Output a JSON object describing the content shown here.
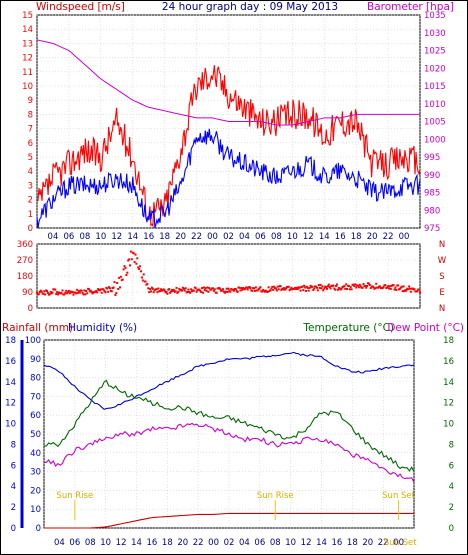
{
  "chart_data": [
    {
      "panel": "wind_barometer",
      "type": "line",
      "title": "24 hour graph day : 09 May 2013",
      "ylabel_left": "Windspeed [m/s]",
      "ylabel_right": "Barometer [hpa]",
      "ylim_left": [
        0,
        15
      ],
      "ylim_right": [
        975,
        1035
      ],
      "yticks_left": [
        "0",
        "1",
        "2",
        "3",
        "4",
        "5",
        "6",
        "7",
        "8",
        "9",
        "10",
        "11",
        "12",
        "13",
        "14",
        "15"
      ],
      "yticks_right": [
        "975",
        "980",
        "985",
        "990",
        "995",
        "1000",
        "1005",
        "1010",
        "1015",
        "1020",
        "1025",
        "1030",
        "1035"
      ],
      "x_hours": [
        0,
        1,
        2,
        3,
        4,
        5,
        6,
        7,
        8,
        9,
        10,
        11,
        12,
        13,
        14,
        15,
        16,
        17,
        18,
        19,
        20,
        21,
        22,
        23,
        24
      ],
      "xtick_labels": [
        "04",
        "06",
        "08",
        "10",
        "12",
        "14",
        "16",
        "18",
        "20",
        "22",
        "00",
        "02",
        "04",
        "06",
        "08",
        "10",
        "12",
        "14",
        "16",
        "18",
        "20",
        "22",
        "00"
      ],
      "series": [
        {
          "name": "Windspeed",
          "color": "#ff0000",
          "values": [
            1.5,
            3.5,
            4.5,
            5.5,
            5.0,
            7.5,
            5.0,
            1.0,
            1.5,
            5.5,
            10.0,
            11.0,
            9.5,
            8.5,
            7.5,
            7.5,
            8.0,
            8.0,
            6.5,
            7.5,
            7.5,
            4.5,
            4.5,
            5.0,
            4.5
          ]
        },
        {
          "name": "Gust/Avg",
          "color": "#0000ff",
          "values": [
            0.5,
            2.0,
            3.0,
            3.0,
            3.0,
            3.5,
            3.0,
            0.5,
            1.0,
            3.0,
            6.5,
            6.5,
            5.0,
            4.5,
            4.0,
            3.5,
            4.0,
            4.5,
            3.5,
            4.0,
            3.5,
            2.5,
            2.5,
            3.0,
            3.0
          ]
        },
        {
          "name": "Barometer",
          "color": "#cc00cc",
          "axis": "right",
          "values": [
            1028,
            1027,
            1025,
            1021,
            1017,
            1014,
            1011,
            1009,
            1008,
            1007,
            1006,
            1006,
            1005,
            1005,
            1005,
            1004,
            1004,
            1005,
            1006,
            1006,
            1007,
            1007,
            1007,
            1007,
            1007
          ]
        }
      ]
    },
    {
      "panel": "wind_direction",
      "type": "scatter",
      "yticks_left": [
        "0",
        "90",
        "180",
        "270",
        "360"
      ],
      "yticks_right": [
        "N",
        "E",
        "S",
        "W",
        "N"
      ],
      "ylim": [
        0,
        360
      ],
      "x_hours": [
        0,
        1,
        2,
        3,
        4,
        5,
        6,
        7,
        8,
        9,
        10,
        11,
        12,
        13,
        14,
        15,
        16,
        17,
        18,
        19,
        20,
        21,
        22,
        23,
        24
      ],
      "series": [
        {
          "name": "Wind direction",
          "color": "#ff0000",
          "values": [
            85,
            90,
            88,
            92,
            95,
            110,
            300,
            105,
            95,
            98,
            100,
            100,
            102,
            105,
            103,
            108,
            110,
            112,
            115,
            118,
            120,
            125,
            115,
            110,
            100
          ]
        }
      ]
    },
    {
      "panel": "rain_humidity_temp",
      "type": "line",
      "labels": {
        "rainfall": "Rainfall (mm)",
        "humidity": "Humidity (%)",
        "temperature": "Temperature (°C)",
        "dewpoint": "Dew Point (°C)"
      },
      "yticks_left": [
        "0",
        "10",
        "20",
        "30",
        "40",
        "50",
        "60",
        "70",
        "80",
        "90",
        "100"
      ],
      "yticks_right": [
        "0",
        "2",
        "4",
        "6",
        "8",
        "10",
        "12",
        "14",
        "16",
        "18"
      ],
      "rain_axis_ticks": [
        "0",
        "2",
        "4",
        "6",
        "8",
        "10",
        "12",
        "14",
        "16",
        "18"
      ],
      "ylim_left": [
        0,
        100
      ],
      "ylim_right": [
        0,
        18
      ],
      "annotations": [
        {
          "text": "Sun Rise",
          "hour": 2
        },
        {
          "text": "Sun Rise",
          "hour": 15
        },
        {
          "text": "Sun Set",
          "hour": 23
        }
      ],
      "bottom_marker": "Sun Set",
      "x_hours": [
        0,
        1,
        2,
        3,
        4,
        5,
        6,
        7,
        8,
        9,
        10,
        11,
        12,
        13,
        14,
        15,
        16,
        17,
        18,
        19,
        20,
        21,
        22,
        23,
        24
      ],
      "series": [
        {
          "name": "Humidity",
          "color": "#0000cc",
          "axis": "left",
          "values": [
            87,
            83,
            75,
            68,
            63,
            66,
            70,
            74,
            78,
            82,
            86,
            88,
            90,
            90,
            91,
            92,
            93,
            92,
            91,
            86,
            83,
            83,
            85,
            86,
            87
          ]
        },
        {
          "name": "Temperature",
          "color": "#006600",
          "axis": "right",
          "values": [
            8.0,
            8.0,
            10.0,
            12.0,
            14.0,
            13.0,
            12.5,
            12.0,
            11.5,
            11.5,
            11.0,
            10.5,
            10.5,
            10.0,
            9.5,
            9.0,
            8.5,
            9.5,
            11.0,
            11.0,
            9.5,
            8.0,
            7.0,
            6.0,
            5.5
          ]
        },
        {
          "name": "Dew Point",
          "color": "#cc00cc",
          "axis": "right",
          "values": [
            6.5,
            6.0,
            7.5,
            8.0,
            8.5,
            9.0,
            9.0,
            9.5,
            9.5,
            9.8,
            10.0,
            9.5,
            9.0,
            8.5,
            8.5,
            8.0,
            8.0,
            8.5,
            8.5,
            8.0,
            7.0,
            6.5,
            5.5,
            5.0,
            4.5
          ]
        },
        {
          "name": "Rainfall",
          "color": "#cc0000",
          "axis": "right",
          "values": [
            0,
            0,
            0,
            0,
            0.1,
            0.4,
            0.7,
            1.0,
            1.1,
            1.2,
            1.3,
            1.3,
            1.4,
            1.4,
            1.4,
            1.4,
            1.4,
            1.4,
            1.4,
            1.4,
            1.4,
            1.4,
            1.4,
            1.4,
            1.4
          ]
        }
      ]
    }
  ]
}
